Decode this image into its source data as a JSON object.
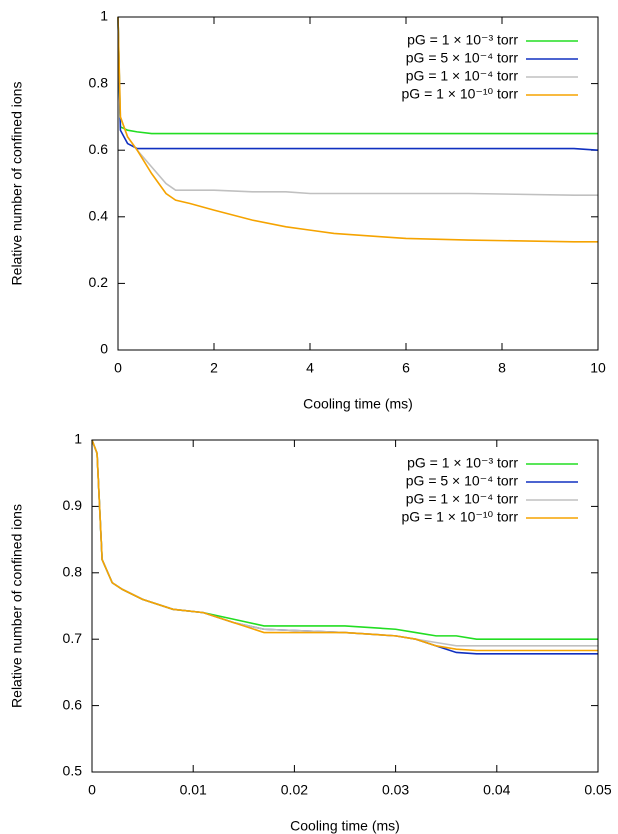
{
  "chart_data": [
    {
      "type": "line",
      "xlabel": "Cooling time (ms)",
      "ylabel": "Relative number of confined ions",
      "x": [
        0,
        0.05,
        0.2,
        0.4,
        0.7,
        1,
        1.2,
        1.5,
        2,
        2.8,
        3.5,
        4,
        4.5,
        5.5,
        6,
        7.3,
        9.5,
        10
      ],
      "xlim": [
        0,
        10
      ],
      "xticks": [
        0,
        2,
        4,
        6,
        8,
        10
      ],
      "ylim": [
        0,
        1
      ],
      "yticks": [
        0,
        0.2,
        0.4,
        0.6,
        0.8,
        1
      ],
      "legend": "upper right",
      "series": [
        {
          "name": "pG = 1 × 10⁻³ torr",
          "color": "#22dd22",
          "values": [
            1,
            0.67,
            0.66,
            0.655,
            0.65,
            0.65,
            0.65,
            0.65,
            0.65,
            0.65,
            0.65,
            0.65,
            0.65,
            0.65,
            0.65,
            0.65,
            0.65,
            0.65
          ]
        },
        {
          "name": "pG = 5 × 10⁻⁴ torr",
          "color": "#1030c0",
          "values": [
            1,
            0.66,
            0.62,
            0.605,
            0.605,
            0.605,
            0.605,
            0.605,
            0.605,
            0.605,
            0.605,
            0.605,
            0.605,
            0.605,
            0.605,
            0.605,
            0.605,
            0.6
          ]
        },
        {
          "name": "pG = 1 × 10⁻⁴ torr",
          "color": "#c0c0c0",
          "values": [
            1,
            0.7,
            0.64,
            0.6,
            0.55,
            0.5,
            0.48,
            0.48,
            0.48,
            0.475,
            0.475,
            0.47,
            0.47,
            0.47,
            0.47,
            0.47,
            0.465,
            0.465
          ]
        },
        {
          "name": "pG = 1 × 10⁻¹⁰ torr",
          "color": "#f5a300",
          "values": [
            1,
            0.7,
            0.64,
            0.6,
            0.53,
            0.47,
            0.45,
            0.44,
            0.42,
            0.39,
            0.37,
            0.36,
            0.35,
            0.34,
            0.335,
            0.33,
            0.325,
            0.325
          ]
        }
      ]
    },
    {
      "type": "line",
      "xlabel": "Cooling time (ms)",
      "ylabel": "Relative number of confined ions",
      "x": [
        0,
        0.0005,
        0.001,
        0.002,
        0.003,
        0.005,
        0.008,
        0.011,
        0.014,
        0.017,
        0.025,
        0.03,
        0.032,
        0.034,
        0.036,
        0.038,
        0.05
      ],
      "xlim": [
        0,
        0.05
      ],
      "xticks": [
        0,
        0.01,
        0.02,
        0.03,
        0.04,
        0.05
      ],
      "ylim": [
        0.5,
        1
      ],
      "yticks": [
        0.5,
        0.6,
        0.7,
        0.8,
        0.9,
        1
      ],
      "legend": "upper right",
      "series": [
        {
          "name": "pG = 1 × 10⁻³ torr",
          "color": "#22dd22",
          "values": [
            1,
            0.98,
            0.82,
            0.785,
            0.775,
            0.76,
            0.745,
            0.74,
            0.73,
            0.72,
            0.72,
            0.715,
            0.71,
            0.705,
            0.705,
            0.7,
            0.7
          ]
        },
        {
          "name": "pG = 5 × 10⁻⁴ torr",
          "color": "#1030c0",
          "values": [
            1,
            0.98,
            0.82,
            0.785,
            0.775,
            0.76,
            0.745,
            0.74,
            0.725,
            0.715,
            0.71,
            0.705,
            0.7,
            0.69,
            0.68,
            0.678,
            0.678
          ]
        },
        {
          "name": "pG = 1 × 10⁻⁴ torr",
          "color": "#c0c0c0",
          "values": [
            1,
            0.98,
            0.82,
            0.785,
            0.775,
            0.76,
            0.745,
            0.74,
            0.725,
            0.715,
            0.71,
            0.705,
            0.7,
            0.695,
            0.69,
            0.69,
            0.69
          ]
        },
        {
          "name": "pG = 1 × 10⁻¹⁰ torr",
          "color": "#f5a300",
          "values": [
            1,
            0.98,
            0.82,
            0.785,
            0.775,
            0.76,
            0.745,
            0.74,
            0.725,
            0.71,
            0.71,
            0.705,
            0.7,
            0.69,
            0.685,
            0.683,
            0.683
          ]
        }
      ]
    }
  ]
}
